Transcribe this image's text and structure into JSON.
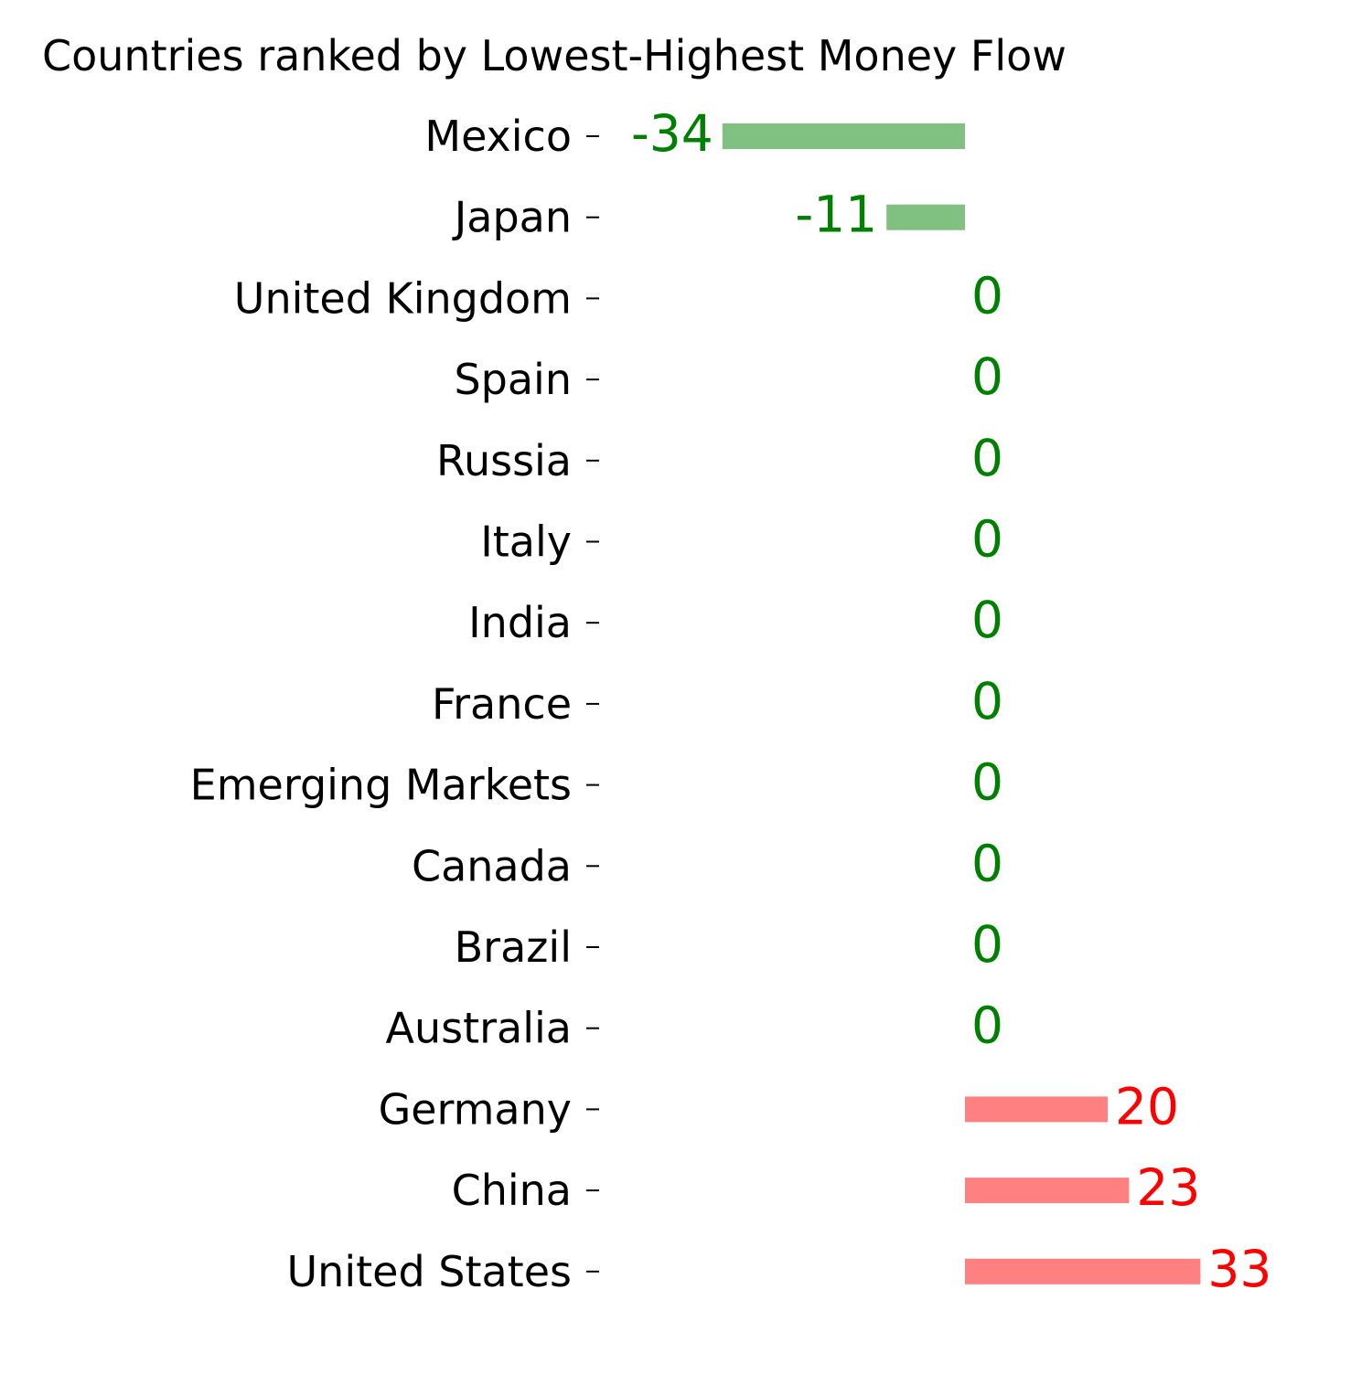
{
  "chart_data": {
    "type": "bar",
    "orientation": "horizontal",
    "title": "Countries ranked by Lowest-Highest Money Flow",
    "xlabel": "",
    "ylabel": "",
    "categories": [
      "Mexico",
      "Japan",
      "United Kingdom",
      "Spain",
      "Russia",
      "Italy",
      "India",
      "France",
      "Emerging Markets",
      "Canada",
      "Brazil",
      "Australia",
      "Germany",
      "China",
      "United States"
    ],
    "values": [
      -34,
      -11,
      0,
      0,
      0,
      0,
      0,
      0,
      0,
      0,
      0,
      0,
      20,
      23,
      33
    ],
    "grid": false,
    "legend": "none",
    "colors": {
      "negative_bar": "#80c080",
      "negative_label": "#008000",
      "positive_bar": "#ff8080",
      "positive_label": "#ff0000",
      "zero_label": "#008000",
      "axis_text": "#000000"
    }
  }
}
